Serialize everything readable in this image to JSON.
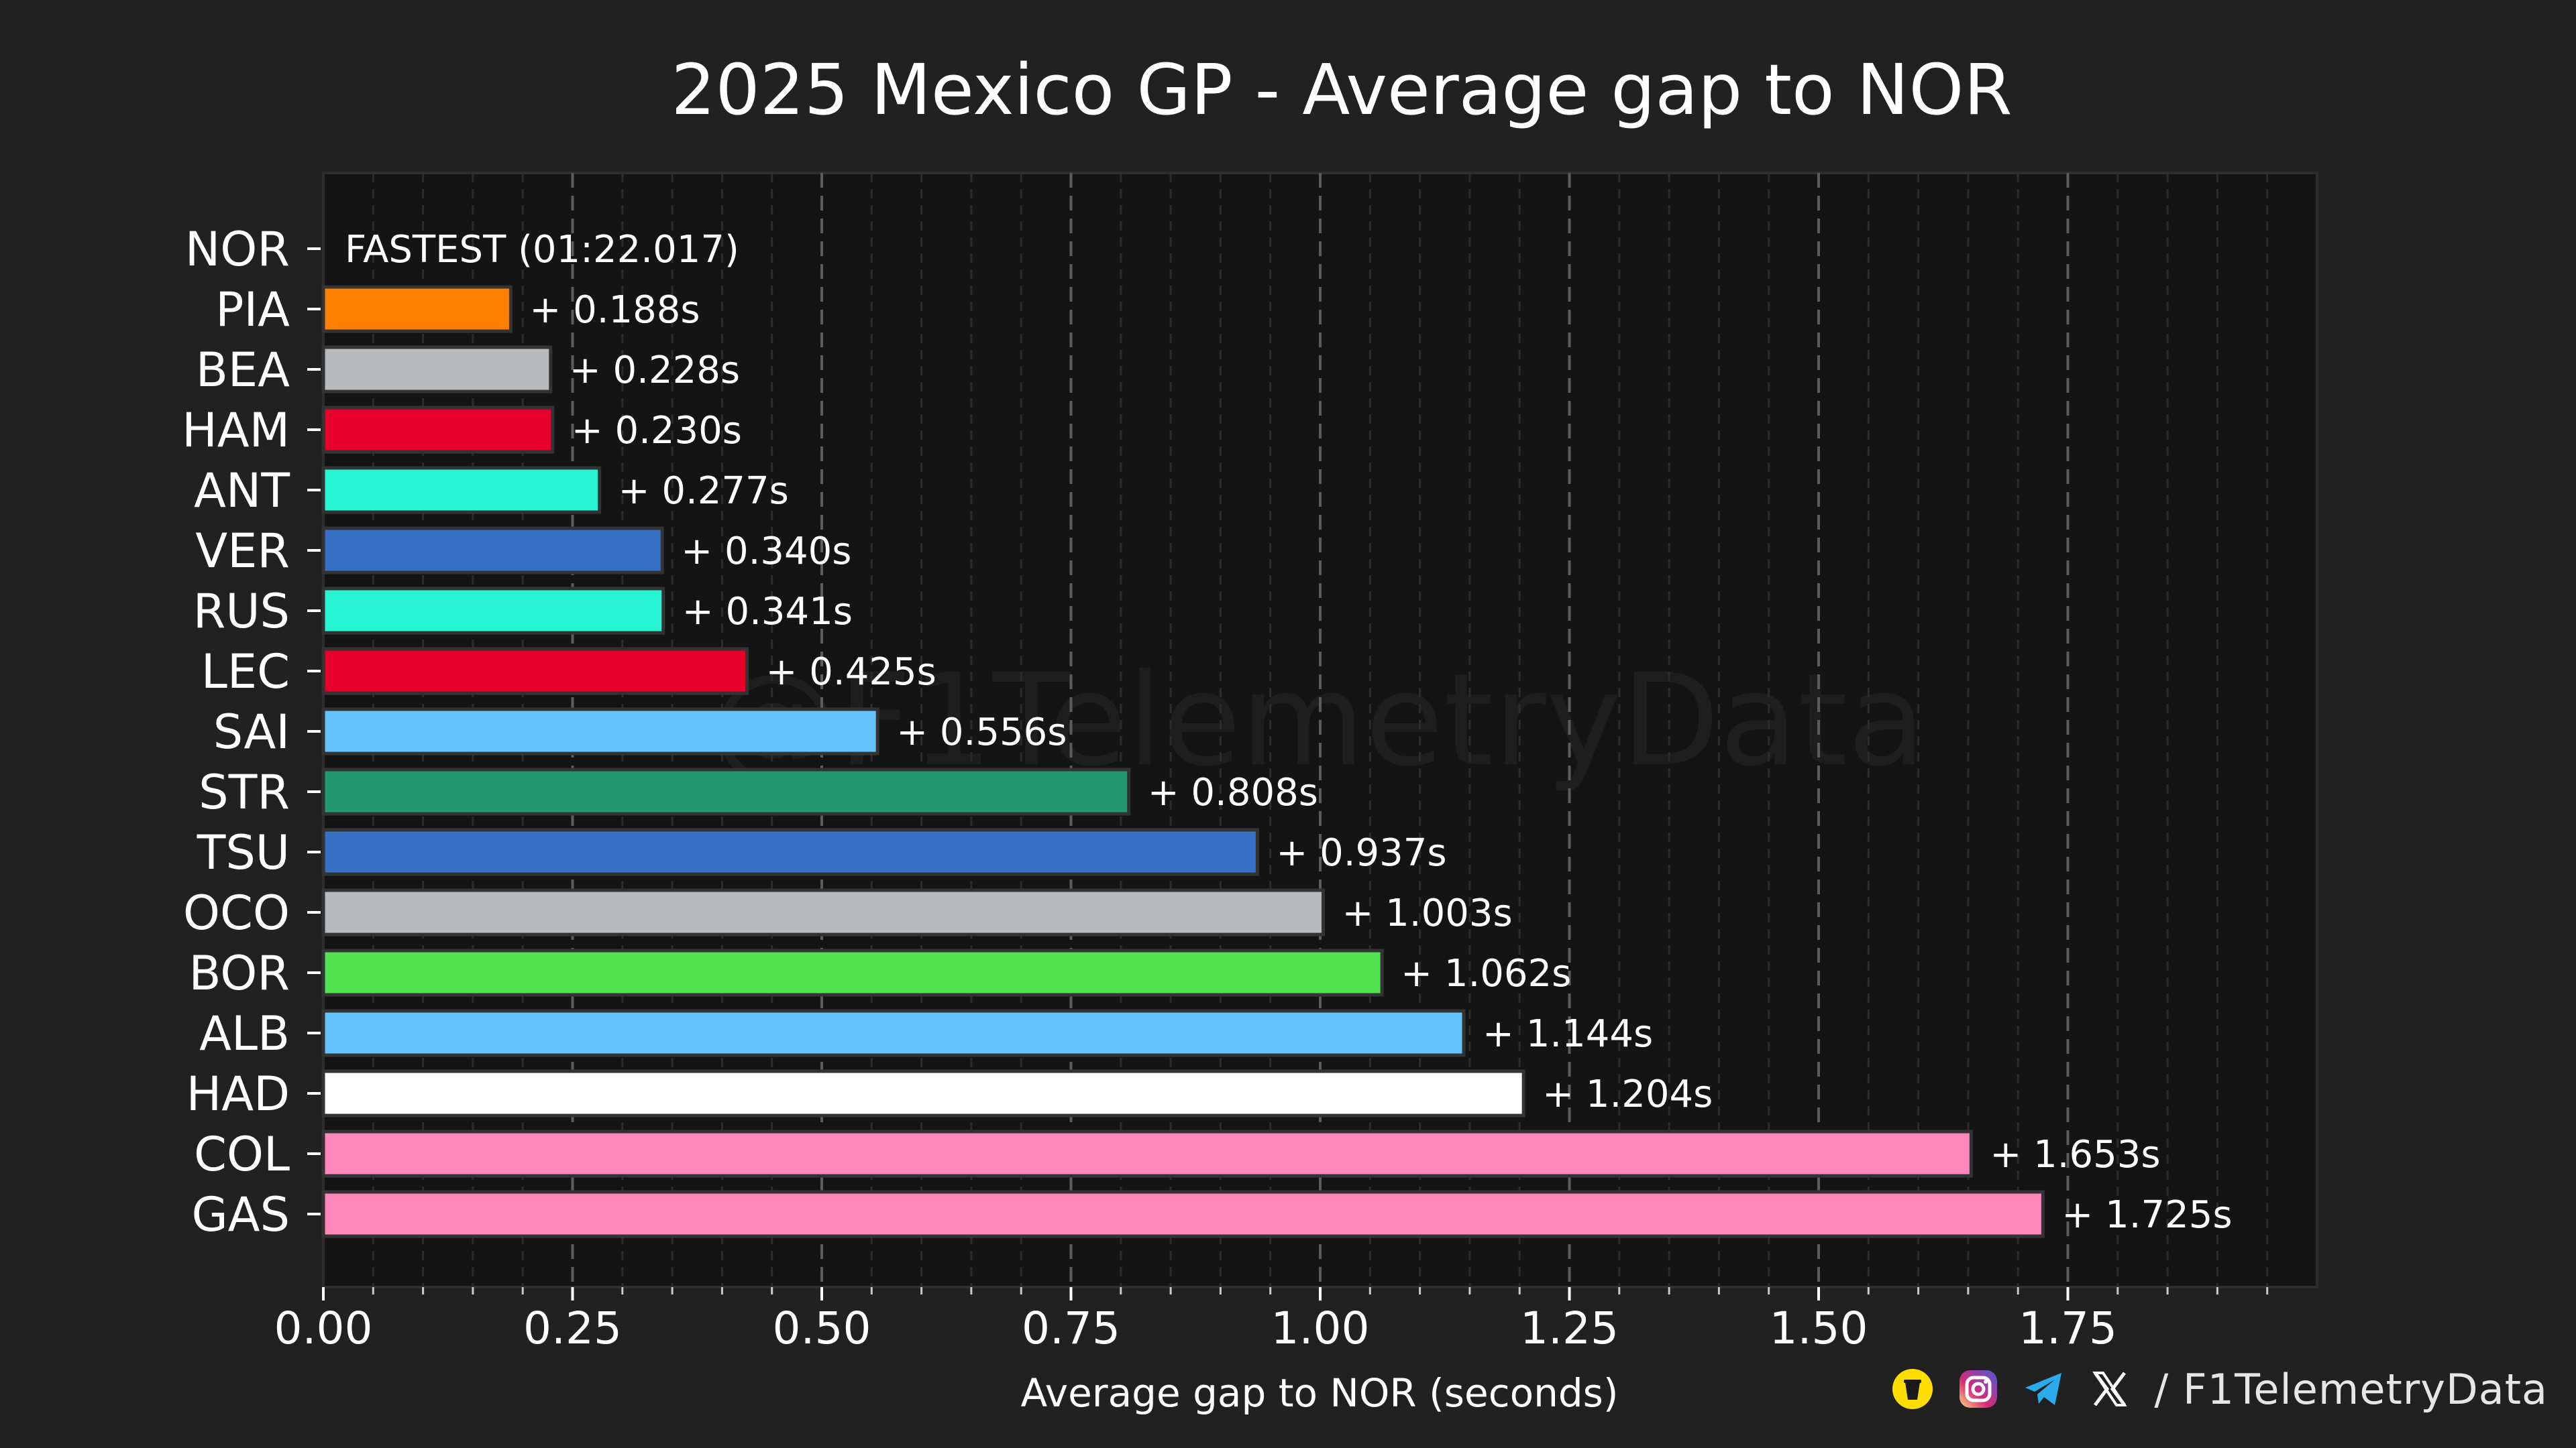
{
  "chart_data": {
    "type": "bar",
    "orientation": "horizontal",
    "title": "2025 Mexico GP - Average gap to NOR",
    "xlabel": "Average gap to NOR (seconds)",
    "ylabel": "",
    "xlim": [
      0,
      2.0
    ],
    "xticks": [
      "0.00",
      "0.25",
      "0.50",
      "0.75",
      "1.00",
      "1.25",
      "1.50",
      "1.75"
    ],
    "reference_label": "FASTEST (01:22.017)",
    "watermark": "@F1TelemetryData",
    "categories": [
      "NOR",
      "PIA",
      "BEA",
      "HAM",
      "ANT",
      "VER",
      "RUS",
      "LEC",
      "SAI",
      "STR",
      "TSU",
      "OCO",
      "BOR",
      "ALB",
      "HAD",
      "COL",
      "GAS"
    ],
    "values": [
      0,
      0.188,
      0.228,
      0.23,
      0.277,
      0.34,
      0.341,
      0.425,
      0.556,
      0.808,
      0.937,
      1.003,
      1.062,
      1.144,
      1.204,
      1.653,
      1.725
    ],
    "labels": [
      "",
      "+ 0.188s",
      "+ 0.228s",
      "+ 0.230s",
      "+ 0.277s",
      "+ 0.340s",
      "+ 0.341s",
      "+ 0.425s",
      "+ 0.556s",
      "+ 0.808s",
      "+ 0.937s",
      "+ 1.003s",
      "+ 1.062s",
      "+ 1.144s",
      "+ 1.204s",
      "+ 1.653s",
      "+ 1.725s"
    ],
    "colors": [
      "#FF8000",
      "#FF8000",
      "#B6BABD",
      "#E8002D",
      "#27F4D2",
      "#3671C6",
      "#27F4D2",
      "#E8002D",
      "#64C4FF",
      "#229971",
      "#3671C6",
      "#B6BABD",
      "#52E252",
      "#64C4FF",
      "#FFFFFF",
      "#FF87BC",
      "#FF87BC"
    ]
  },
  "footer": {
    "handle": "/ F1TelemetryData",
    "icons": [
      "buymeacoffee-icon",
      "instagram-icon",
      "telegram-icon",
      "x-icon"
    ]
  }
}
